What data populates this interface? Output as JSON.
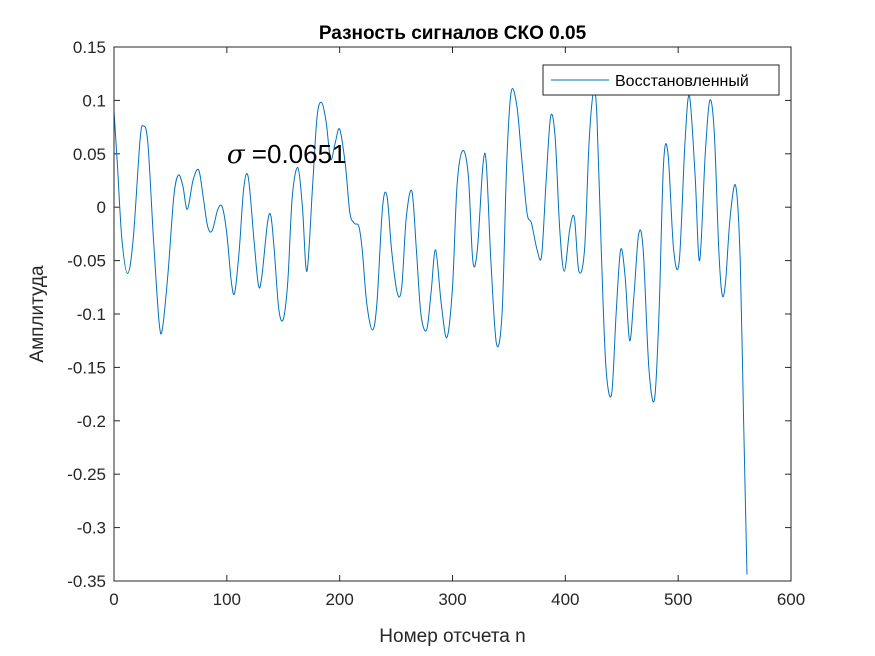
{
  "chart_data": {
    "type": "line",
    "title": "Разность сигналов СКО 0.05",
    "xlabel": "Номер отсчета n",
    "ylabel": "Амплитуда",
    "xlim": [
      0,
      600
    ],
    "ylim": [
      -0.35,
      0.15
    ],
    "xticks": [
      0,
      100,
      200,
      300,
      400,
      500,
      600
    ],
    "yticks": [
      0.15,
      0.1,
      0.05,
      0,
      -0.05,
      -0.1,
      -0.15,
      -0.2,
      -0.25,
      -0.3,
      -0.35
    ],
    "xtick_labels": [
      "0",
      "100",
      "200",
      "300",
      "400",
      "500",
      "600"
    ],
    "ytick_labels": [
      "0.15",
      "0.1",
      "0.05",
      "0",
      "-0.05",
      "-0.1",
      "-0.15",
      "-0.2",
      "-0.25",
      "-0.3",
      "-0.35"
    ],
    "grid": false,
    "legend_position": "top-right",
    "annotation": {
      "symbol": "σ",
      "text": " =0.0651",
      "x": 100,
      "y": 0.05
    },
    "series": [
      {
        "name": "Восстановленный",
        "color": "#0072BD",
        "x": [
          0,
          3,
          7,
          12,
          17,
          23,
          26,
          30,
          35,
          40,
          43,
          48,
          53,
          57,
          61,
          65,
          70,
          75,
          79,
          83,
          87,
          92,
          96,
          100,
          104,
          107,
          111,
          115,
          119,
          124,
          128,
          131,
          136,
          139,
          142,
          146,
          150,
          154,
          158,
          163,
          167,
          171,
          176,
          180,
          184,
          188,
          192,
          196,
          200,
          205,
          209,
          213,
          217,
          220,
          224,
          229,
          233,
          238,
          242,
          246,
          251,
          255,
          259,
          264,
          268,
          272,
          277,
          281,
          285,
          290,
          295,
          300,
          304,
          309,
          314,
          318,
          322,
          327,
          330,
          334,
          339,
          344,
          348,
          352,
          357,
          361,
          366,
          370,
          375,
          379,
          383,
          387,
          391,
          395,
          399,
          404,
          408,
          412,
          417,
          421,
          425,
          428,
          432,
          436,
          441,
          445,
          449,
          453,
          457,
          461,
          465,
          469,
          474,
          479,
          483,
          487,
          491,
          496,
          501,
          506,
          510,
          515,
          519,
          524,
          528,
          532,
          536,
          539,
          542,
          546,
          551,
          555,
          558,
          561
        ],
        "y": [
          0.09,
          0.04,
          -0.03,
          -0.062,
          -0.03,
          0.062,
          0.076,
          0.06,
          -0.03,
          -0.108,
          -0.113,
          -0.06,
          0.01,
          0.03,
          0.02,
          -0.002,
          0.025,
          0.035,
          0.01,
          -0.018,
          -0.022,
          -0.002,
          0.0,
          -0.025,
          -0.07,
          -0.08,
          -0.04,
          0.018,
          0.028,
          -0.03,
          -0.073,
          -0.065,
          -0.015,
          -0.008,
          -0.04,
          -0.095,
          -0.105,
          -0.07,
          0.01,
          0.037,
          0.0,
          -0.06,
          0.02,
          0.085,
          0.098,
          0.08,
          0.045,
          0.06,
          0.073,
          0.04,
          -0.005,
          -0.015,
          -0.018,
          -0.04,
          -0.09,
          -0.115,
          -0.09,
          0.0,
          0.01,
          -0.04,
          -0.08,
          -0.075,
          -0.01,
          0.015,
          -0.04,
          -0.1,
          -0.115,
          -0.08,
          -0.04,
          -0.09,
          -0.122,
          -0.075,
          0.02,
          0.053,
          0.03,
          -0.05,
          -0.04,
          0.04,
          0.04,
          -0.05,
          -0.128,
          -0.098,
          0.04,
          0.108,
          0.095,
          0.05,
          -0.005,
          -0.015,
          -0.04,
          -0.045,
          0.025,
          0.085,
          0.065,
          -0.02,
          -0.06,
          -0.02,
          -0.01,
          -0.06,
          -0.04,
          0.06,
          0.108,
          0.085,
          -0.045,
          -0.15,
          -0.175,
          -0.1,
          -0.04,
          -0.065,
          -0.125,
          -0.08,
          -0.025,
          -0.04,
          -0.15,
          -0.18,
          -0.1,
          0.04,
          0.05,
          -0.04,
          -0.05,
          0.06,
          0.104,
          0.03,
          -0.05,
          0.05,
          0.1,
          0.07,
          -0.04,
          -0.082,
          -0.07,
          -0.01,
          0.02,
          -0.05,
          -0.2,
          -0.344
        ]
      }
    ]
  }
}
